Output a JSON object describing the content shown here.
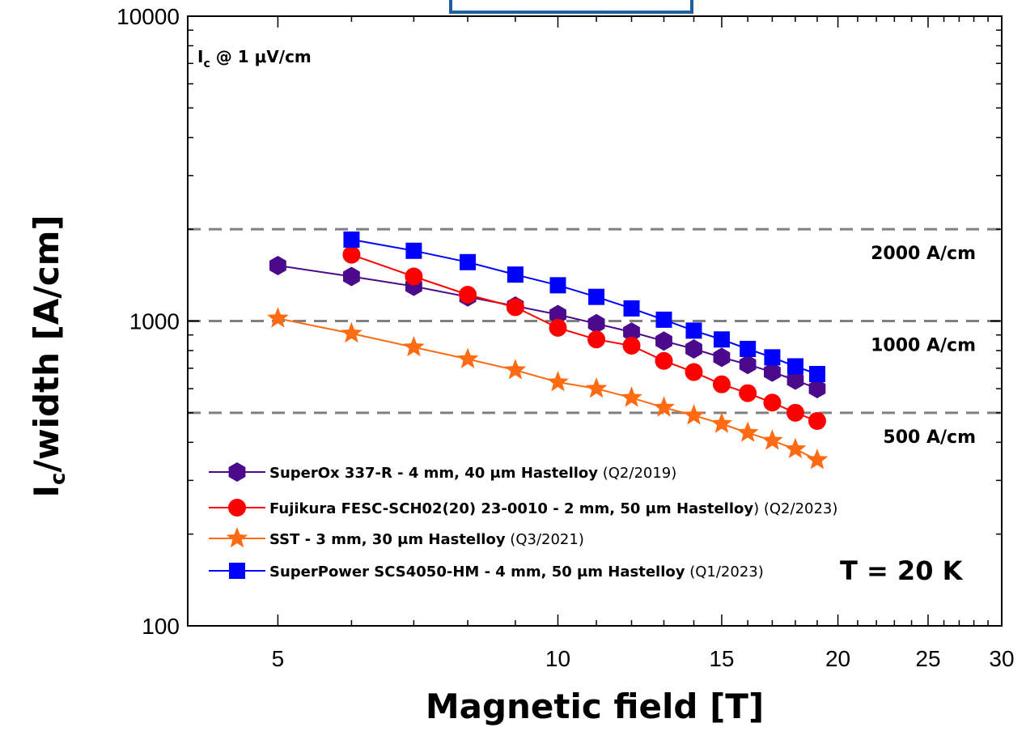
{
  "chart_data": {
    "type": "line",
    "xscale": "log",
    "yscale": "log",
    "xlim": [
      4,
      30
    ],
    "ylim": [
      100,
      10000
    ],
    "xticks": [
      5,
      10,
      15,
      20,
      25,
      30
    ],
    "yticks": [
      100,
      1000,
      10000
    ],
    "xlabel": "Magnetic field [T]",
    "ylabel_main": "I",
    "ylabel_sub": "c",
    "ylabel_rest": "/width [A/cm]",
    "criterion_main": "I",
    "criterion_sub": "c",
    "criterion_rest": " @ 1 μV/cm",
    "temperature": "T = 20 K",
    "reference_lines": [
      {
        "y": 2000,
        "label": "2000 A/cm"
      },
      {
        "y": 1000,
        "label": "1000 A/cm"
      },
      {
        "y": 500,
        "label": "500 A/cm"
      }
    ],
    "series": [
      {
        "name": "SuperOx 337-R - 4 mm, 40 μm Hastelloy",
        "note": " (Q2/2019)",
        "color": "#4b0a8c",
        "marker": "hexagon",
        "x": [
          5,
          6,
          7,
          8,
          9,
          10,
          11,
          12,
          13,
          14,
          15,
          16,
          17,
          18,
          19
        ],
        "y": [
          1520,
          1400,
          1300,
          1200,
          1120,
          1050,
          980,
          920,
          860,
          810,
          760,
          720,
          680,
          640,
          600
        ]
      },
      {
        "name": "Fujikura FESC-SCH02(20) 23-0010 - 2 mm, 50 μm Hastelloy",
        "note": ") (Q2/2023)",
        "color": "#ff0000",
        "marker": "circle",
        "x": [
          6,
          7,
          8,
          9,
          10,
          11,
          12,
          13,
          14,
          15,
          16,
          17,
          18,
          19
        ],
        "y": [
          1650,
          1400,
          1220,
          1110,
          950,
          870,
          830,
          740,
          680,
          620,
          580,
          540,
          500,
          470
        ]
      },
      {
        "name": "SST - 3 mm, 30 μm Hastelloy",
        "note": " (Q3/2021)",
        "color": "#ff6a13",
        "marker": "star",
        "x": [
          5,
          6,
          7,
          8,
          9,
          10,
          11,
          12,
          13,
          14,
          15,
          16,
          17,
          18,
          19
        ],
        "y": [
          1020,
          910,
          820,
          750,
          690,
          630,
          600,
          560,
          520,
          490,
          460,
          430,
          405,
          380,
          350
        ]
      },
      {
        "name": "SuperPower SCS4050-HM - 4 mm, 50 μm Hastelloy",
        "note": " (Q1/2023)",
        "color": "#0000ff",
        "marker": "square",
        "x": [
          6,
          7,
          8,
          9,
          10,
          11,
          12,
          13,
          14,
          15,
          16,
          17,
          18,
          19
        ],
        "y": [
          1850,
          1700,
          1560,
          1420,
          1310,
          1200,
          1100,
          1010,
          930,
          870,
          810,
          760,
          710,
          670
        ]
      }
    ]
  }
}
